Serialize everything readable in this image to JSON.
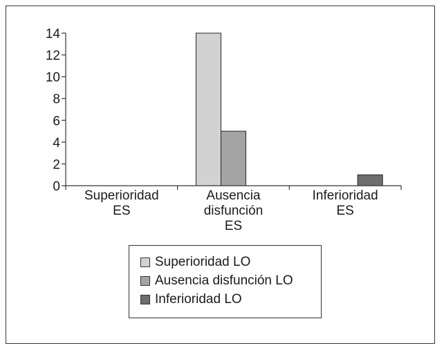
{
  "chart_data": {
    "type": "bar",
    "categories": [
      "Superioridad\nES",
      "Ausencia\ndisfunción\nES",
      "Inferioridad\nES"
    ],
    "series": [
      {
        "name": "Superioridad LO",
        "values": [
          0,
          14,
          0
        ],
        "color": "#d2d2d2"
      },
      {
        "name": "Ausencia disfunción LO",
        "values": [
          0,
          5,
          0
        ],
        "color": "#a4a4a4"
      },
      {
        "name": "Inferioridad LO",
        "values": [
          0,
          0,
          1
        ],
        "color": "#6e6e6e"
      }
    ],
    "yticks": [
      "0",
      "2",
      "4",
      "6",
      "8",
      "10",
      "12",
      "14"
    ],
    "ylim": [
      0,
      14
    ],
    "grid": false,
    "legend_position": "bottom-center"
  }
}
